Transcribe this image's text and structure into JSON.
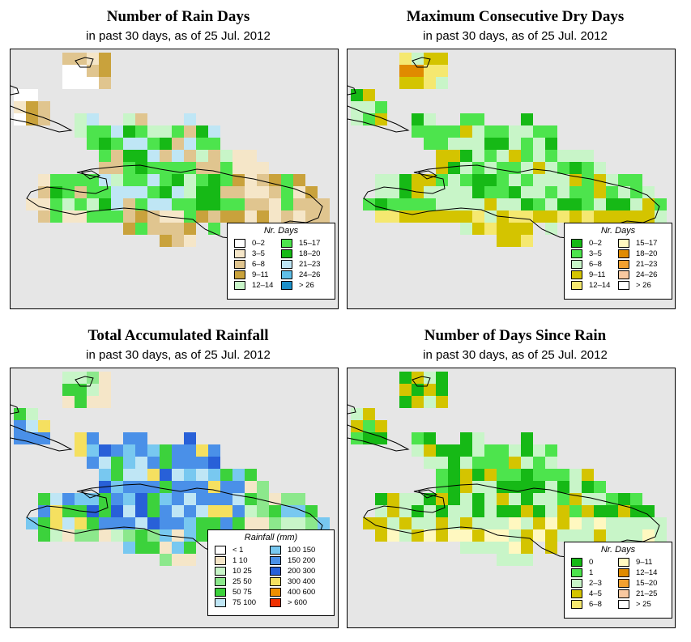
{
  "panels": [
    {
      "id": "rain-days",
      "title": "Number of Rain Days",
      "subtitle": "in past 30 days, as of  25 Jul. 2012",
      "legend_title": "Nr. Days",
      "legend": [
        {
          "label": "0–2",
          "color": "#ffffff"
        },
        {
          "label": "3–5",
          "color": "#f5e6c8"
        },
        {
          "label": "6–8",
          "color": "#e0c58f"
        },
        {
          "label": "9–11",
          "color": "#c9a23c"
        },
        {
          "label": "12–14",
          "color": "#c8f5c8"
        },
        {
          "label": "15–17",
          "color": "#4de44d"
        },
        {
          "label": "18–20",
          "color": "#16b916"
        },
        {
          "label": "21–23",
          "color": "#bfe6f5"
        },
        {
          "label": "24–26",
          "color": "#5fbfe8"
        },
        {
          "label": "> 26",
          "color": "#1e90c8"
        }
      ]
    },
    {
      "id": "max-dry-days",
      "title": "Maximum Consecutive Dry Days",
      "subtitle": "in past 30 days, as of  25 Jul. 2012",
      "legend_title": "Nr. Days",
      "legend": [
        {
          "label": "0–2",
          "color": "#16b916"
        },
        {
          "label": "3–5",
          "color": "#4de44d"
        },
        {
          "label": "6–8",
          "color": "#c8f5c8"
        },
        {
          "label": "9–11",
          "color": "#d4c400"
        },
        {
          "label": "12–14",
          "color": "#f5e870"
        },
        {
          "label": "15–17",
          "color": "#fff8c0"
        },
        {
          "label": "18–20",
          "color": "#e08a00"
        },
        {
          "label": "21–23",
          "color": "#f2a030"
        },
        {
          "label": "24–26",
          "color": "#f8c8a0"
        },
        {
          "label": "> 26",
          "color": "#ffffff"
        }
      ]
    },
    {
      "id": "total-rainfall",
      "title": "Total Accumulated Rainfall",
      "subtitle": "in past 30 days, as of  25 Jul. 2012",
      "legend_title": "Rainfall (mm)",
      "legend": [
        {
          "label": "< 1",
          "color": "#ffffff"
        },
        {
          "label": "1   10",
          "color": "#f5e6c8"
        },
        {
          "label": "10   25",
          "color": "#c8f5c8"
        },
        {
          "label": "25   50",
          "color": "#8ce88c"
        },
        {
          "label": "50   75",
          "color": "#3cd23c"
        },
        {
          "label": "75  100",
          "color": "#bfe6f5"
        },
        {
          "label": "100  150",
          "color": "#78c8f0"
        },
        {
          "label": "150  200",
          "color": "#4a90e8"
        },
        {
          "label": "200  300",
          "color": "#2860d8"
        },
        {
          "label": "300  400",
          "color": "#f5e060"
        },
        {
          "label": "400  600",
          "color": "#f09000"
        },
        {
          "label": "> 600",
          "color": "#f03000"
        }
      ]
    },
    {
      "id": "days-since-rain",
      "title": "Number of Days Since Rain",
      "subtitle": "in past 30 days, as of  25 Jul. 2012",
      "legend_title": "Nr. Days",
      "legend": [
        {
          "label": "0",
          "color": "#16b916"
        },
        {
          "label": "1",
          "color": "#4de44d"
        },
        {
          "label": "2–3",
          "color": "#c8f5c8"
        },
        {
          "label": "4–5",
          "color": "#d4c400"
        },
        {
          "label": "6–8",
          "color": "#f5e870"
        },
        {
          "label": "9–11",
          "color": "#fff8c0"
        },
        {
          "label": "12–14",
          "color": "#e08a00"
        },
        {
          "label": "15–20",
          "color": "#f2a030"
        },
        {
          "label": "21–25",
          "color": "#f8c8a0"
        },
        {
          "label": "> 25",
          "color": "#ffffff"
        }
      ]
    }
  ]
}
